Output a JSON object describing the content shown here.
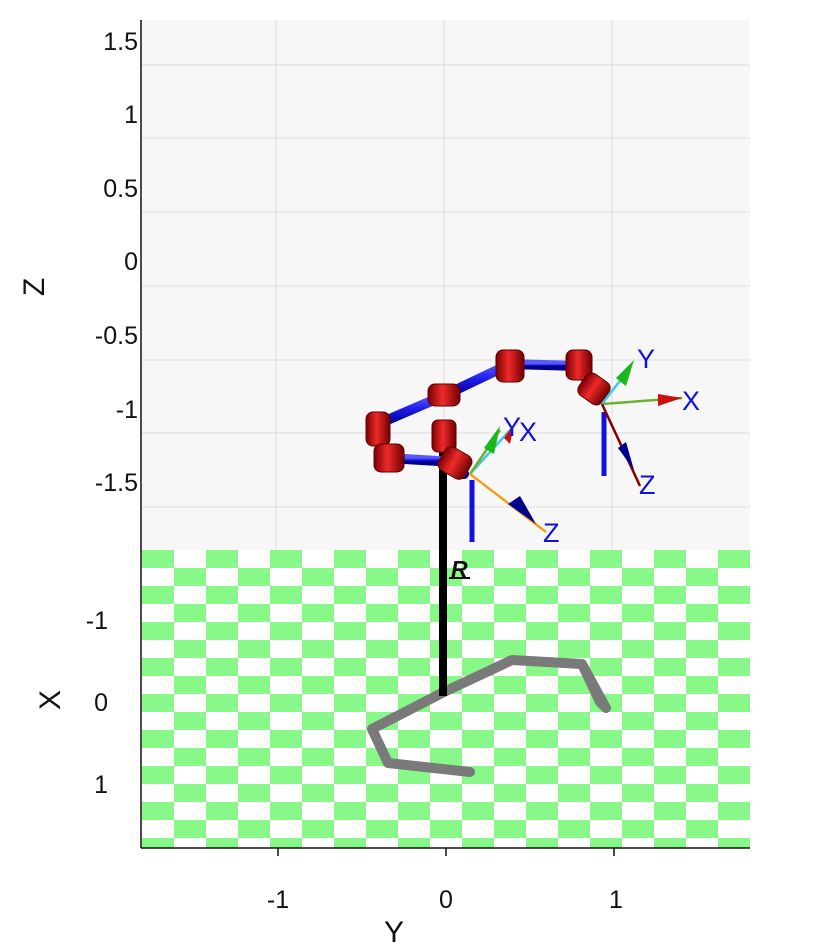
{
  "plot": {
    "z_ticks": [
      "1.5",
      "1",
      "0.5",
      "0",
      "-0.5",
      "-1",
      "-1.5"
    ],
    "x_ticks": [
      "-1",
      "0",
      "1"
    ],
    "y_ticks": [
      "-1",
      "0",
      "1"
    ],
    "z_label": "Z",
    "x_label": "X",
    "y_label": "Y",
    "base_label": "R"
  },
  "frames": {
    "wrist_right": {
      "x": "X",
      "y": "Y",
      "z": "Z"
    },
    "wrist_center": {
      "x": "X",
      "y": "Y",
      "z": "Z"
    }
  },
  "colors": {
    "robot_joint": "#cc1010",
    "robot_link": "#1a1ae6",
    "floor_checker": "#88f888",
    "trajectory_shadow": "#7a7a7a",
    "backdrop": "#f7f7f7",
    "frame_label": "#1010e0"
  }
}
